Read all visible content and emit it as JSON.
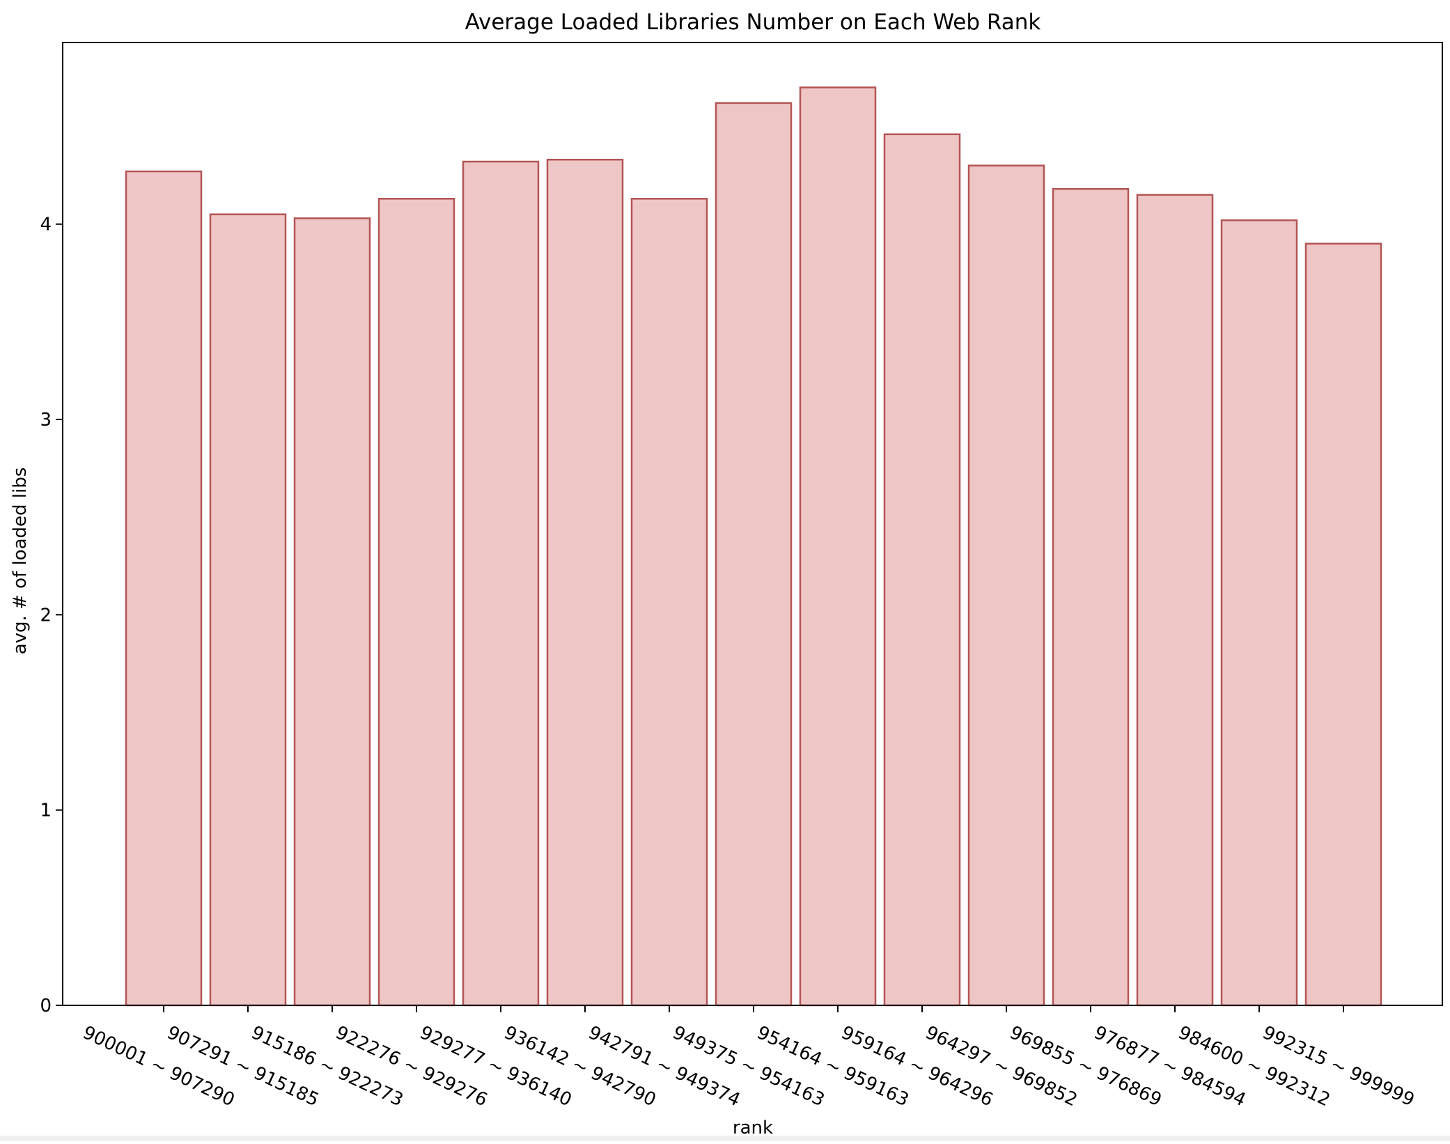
{
  "chart_data": {
    "type": "bar",
    "title": "Average Loaded Libraries Number on Each Web Rank",
    "xlabel": "rank",
    "ylabel": "avg. # of loaded libs",
    "categories": [
      "900001 ~ 907290",
      "907291 ~ 915185",
      "915186 ~ 922273",
      "922276 ~ 929276",
      "929277 ~ 936140",
      "936142 ~ 942790",
      "942791 ~ 949374",
      "949375 ~ 954163",
      "954164 ~ 959163",
      "959164 ~ 964296",
      "964297 ~ 969852",
      "969855 ~ 976869",
      "976877 ~ 984594",
      "984600 ~ 992312",
      "992315 ~ 999999"
    ],
    "values": [
      4.27,
      4.05,
      4.03,
      4.13,
      4.32,
      4.33,
      4.13,
      4.62,
      4.7,
      4.46,
      4.3,
      4.18,
      4.15,
      4.02,
      3.9
    ],
    "yticks": [
      "0",
      "1",
      "2",
      "3",
      "4"
    ],
    "ylim": [
      0,
      4.93
    ],
    "grid": false,
    "legend": "none",
    "bar_fill": "#efc6c6",
    "bar_stroke": "#b45555"
  }
}
